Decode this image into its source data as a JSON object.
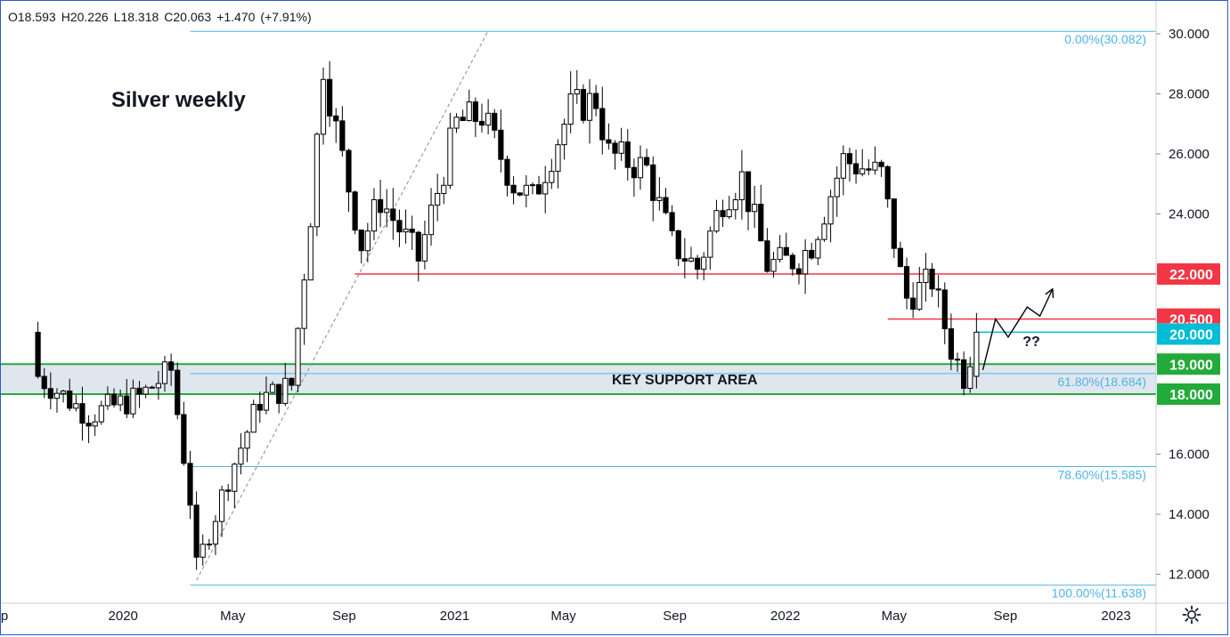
{
  "header": {
    "open": "O18.593",
    "high": "H20.226",
    "low": "L18.318",
    "close": "C20.063",
    "change": "+1.470",
    "change_pct": "(+7.91%)"
  },
  "colors": {
    "up_candle": "#ffffff",
    "down_candle": "#000000",
    "resistance": "#f23645",
    "support": "#22ab3a",
    "fib": "#4fb4e8",
    "last_price": "#00bcd4",
    "support_zone": "#dfe6ee"
  },
  "icons": {
    "settings": "gear-icon"
  },
  "chart_data": {
    "type": "candlestick",
    "title": "Silver weekly",
    "timeframe": "weekly",
    "xlabel": "",
    "ylabel": "",
    "ylim": [
      11.1,
      31.0
    ],
    "grid": false,
    "y_ticks": [
      "30.000",
      "28.000",
      "26.000",
      "24.000",
      "16.000",
      "14.000",
      "12.000"
    ],
    "x_ticks": [
      {
        "label": "p",
        "date": "2019-09-01"
      },
      {
        "label": "2020",
        "date": "2020-01-01"
      },
      {
        "label": "May",
        "date": "2020-05-01"
      },
      {
        "label": "Sep",
        "date": "2020-09-01"
      },
      {
        "label": "2021",
        "date": "2021-01-01"
      },
      {
        "label": "May",
        "date": "2021-05-01"
      },
      {
        "label": "Sep",
        "date": "2021-09-01"
      },
      {
        "label": "2022",
        "date": "2022-01-01"
      },
      {
        "label": "May",
        "date": "2022-05-01"
      },
      {
        "label": "Sep",
        "date": "2022-09-01"
      },
      {
        "label": "2023",
        "date": "2023-01-01"
      }
    ],
    "path_points": [
      [
        "2019-09-29",
        18.6
      ],
      [
        "2019-11-24",
        17.3
      ],
      [
        "2020-01-19",
        17.9
      ],
      [
        "2020-02-23",
        18.8
      ],
      [
        "2020-03-15",
        14.5
      ],
      [
        "2020-03-22",
        12.2
      ],
      [
        "2020-04-26",
        15.2
      ],
      [
        "2020-05-31",
        17.8
      ],
      [
        "2020-07-05",
        18.3
      ],
      [
        "2020-07-26",
        24.0
      ],
      [
        "2020-08-09",
        29.0
      ],
      [
        "2020-08-23",
        26.8
      ],
      [
        "2020-09-20",
        23.0
      ],
      [
        "2020-10-11",
        24.5
      ],
      [
        "2020-11-22",
        22.5
      ],
      [
        "2021-01-03",
        27.0
      ],
      [
        "2021-01-31",
        27.3
      ],
      [
        "2021-03-07",
        25.0
      ],
      [
        "2021-03-28",
        24.5
      ],
      [
        "2021-05-09",
        27.5
      ],
      [
        "2021-06-06",
        27.8
      ],
      [
        "2021-06-20",
        26.0
      ],
      [
        "2021-08-01",
        25.5
      ],
      [
        "2021-08-29",
        23.0
      ],
      [
        "2021-09-26",
        22.2
      ],
      [
        "2021-10-24",
        24.5
      ],
      [
        "2021-11-14",
        25.2
      ],
      [
        "2021-12-12",
        22.3
      ],
      [
        "2022-01-16",
        22.5
      ],
      [
        "2022-01-30",
        23.0
      ],
      [
        "2022-03-06",
        25.8
      ],
      [
        "2022-04-17",
        25.3
      ],
      [
        "2022-05-08",
        22.0
      ],
      [
        "2022-05-15",
        21.2
      ],
      [
        "2022-06-12",
        21.8
      ],
      [
        "2022-07-03",
        19.5
      ],
      [
        "2022-07-17",
        18.6
      ],
      [
        "2022-07-31",
        20.06
      ]
    ],
    "horizontal_levels": [
      {
        "value": 22.0,
        "label": "22.000",
        "kind": "resistance",
        "start": "2020-09-13"
      },
      {
        "value": 20.5,
        "label": "20.500",
        "kind": "resistance",
        "start": "2022-04-24"
      },
      {
        "value": 20.063,
        "label": "20.063",
        "kind": "last-price",
        "start": "2022-07-31"
      },
      {
        "value": 20.0,
        "label": "20.000",
        "kind": "last-price-badge",
        "start": null
      },
      {
        "value": 19.0,
        "label": "19.000",
        "kind": "support",
        "start": null
      },
      {
        "value": 18.0,
        "label": "18.000",
        "kind": "support",
        "start": null
      }
    ],
    "support_zone": {
      "from": 18.0,
      "to": 19.0,
      "label": "KEY SUPPORT AREA"
    },
    "fibonacci": {
      "start": "2020-03-15",
      "levels": [
        {
          "value": 30.082,
          "label": "0.00%(30.082)"
        },
        {
          "value": 18.684,
          "label": "61.80%(18.684)"
        },
        {
          "value": 15.585,
          "label": "78.60%(15.585)"
        },
        {
          "value": 11.638,
          "label": "100.00%(11.638)"
        }
      ]
    },
    "trendline": {
      "from": [
        "2020-03-22",
        11.8
      ],
      "to": [
        "2021-02-07",
        30.1
      ],
      "style": "dashed"
    },
    "projection": [
      [
        "2022-08-07",
        18.8
      ],
      [
        "2022-08-21",
        20.5
      ],
      [
        "2022-09-04",
        19.9
      ],
      [
        "2022-09-25",
        20.9
      ],
      [
        "2022-10-09",
        20.6
      ],
      [
        "2022-10-23",
        21.5
      ]
    ],
    "annotations": [
      {
        "text": "??",
        "date": "2022-09-20",
        "value": 19.6
      }
    ]
  }
}
